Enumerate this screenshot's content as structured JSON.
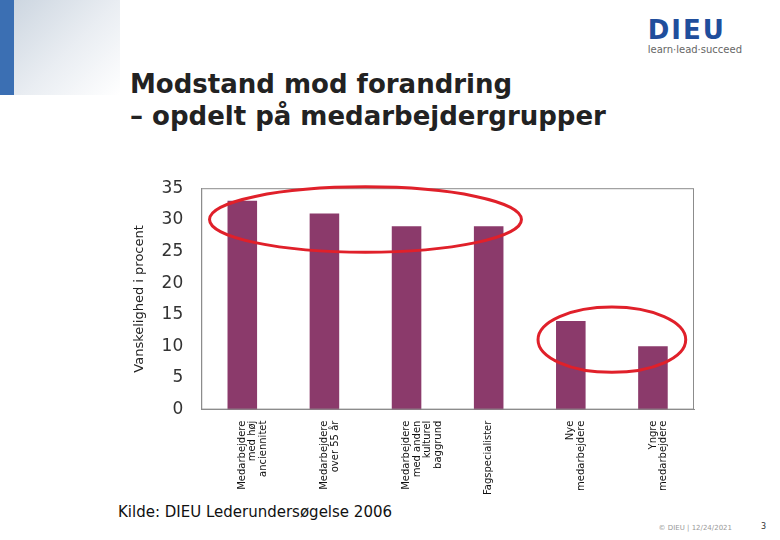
{
  "chart_data": {
    "type": "bar",
    "title": "Modstand mod forandring\n– opdelt på medarbejdergrupper",
    "y_label": "Vanskelighed i procent",
    "categories": [
      "Medarbejdere\nmed høj\nanciennitet",
      "Medarbejdere\nover 55 år",
      "Medarbejdere\nmed anden\nkulturel\nbaggrund",
      "Fagspecialister",
      "Nye\nmedarbejdere",
      "Yngre\nmedarbejdere"
    ],
    "values": [
      33,
      31,
      29,
      29,
      14,
      10
    ],
    "color": "#8b3a6b",
    "ylim": [
      0,
      35
    ],
    "yticks": [
      0,
      5,
      10,
      15,
      20,
      25,
      30,
      35
    ],
    "grid": false
  },
  "source": "Kilde: DIEU Lederundersøgelse 2006",
  "logo": {
    "name": "DIEU",
    "tagline": "learn·lead·succeed"
  },
  "footer": {
    "copyright": "© DIEU | 12/24/2021",
    "page": "3"
  }
}
